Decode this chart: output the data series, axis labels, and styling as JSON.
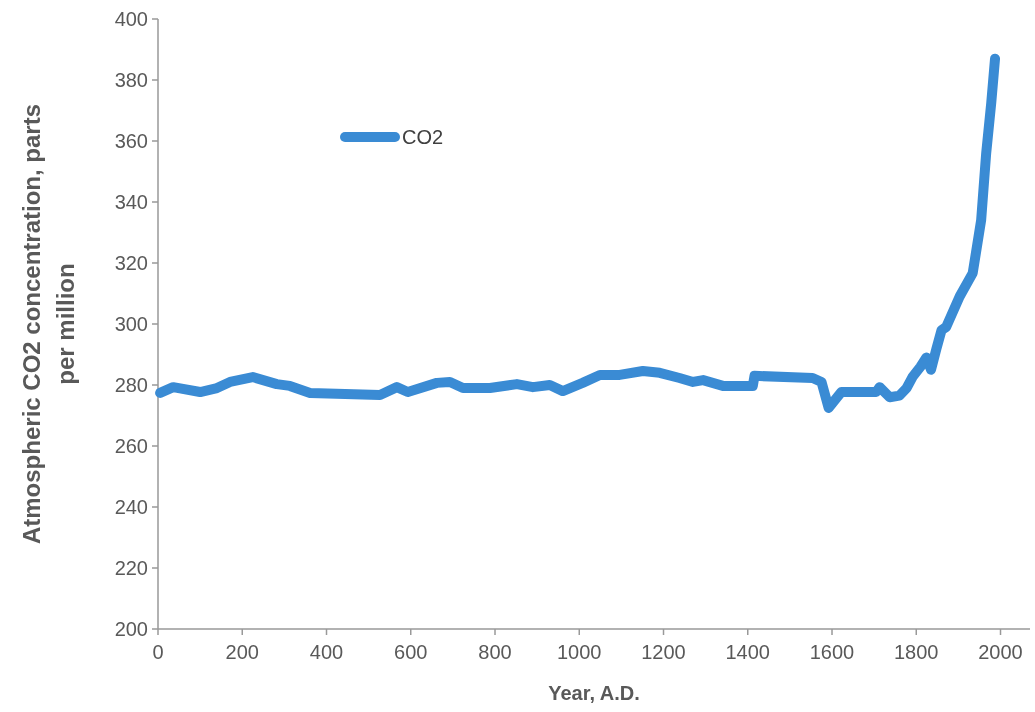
{
  "chart_data": {
    "type": "line",
    "xlabel": "Year, A.D.",
    "ylabel": "Atmospheric CO2 concentration, parts per million",
    "xlim": [
      0,
      2070
    ],
    "xticks": [
      0,
      200,
      400,
      600,
      800,
      1000,
      1200,
      1400,
      1600,
      1800,
      2000
    ],
    "ylim": [
      200,
      400
    ],
    "yticks": [
      200,
      220,
      240,
      260,
      280,
      300,
      320,
      340,
      360,
      380,
      400
    ],
    "grid": false,
    "legend": "top left",
    "line_style": "solid",
    "series": [
      {
        "name": "CO2",
        "color": "#3a8bd4",
        "x": [
          5,
          36,
          100,
          140,
          171,
          225,
          282,
          313,
          361,
          527,
          567,
          593,
          662,
          693,
          724,
          788,
          852,
          890,
          930,
          961,
          1008,
          1049,
          1096,
          1151,
          1191,
          1238,
          1270,
          1294,
          1341,
          1412,
          1416,
          1554,
          1575,
          1592,
          1622,
          1705,
          1713,
          1737,
          1760,
          1777,
          1791,
          1810,
          1824,
          1835,
          1848,
          1860,
          1871,
          1903,
          1934,
          1954,
          1966,
          1978,
          1987
        ],
        "values": [
          277.4,
          279.3,
          277.7,
          279,
          281,
          282.6,
          280.3,
          279.7,
          277.4,
          276.7,
          279.3,
          277.7,
          280.7,
          281,
          279,
          279,
          280.3,
          279.3,
          280,
          278,
          280.7,
          283.3,
          283.3,
          284.6,
          284,
          282.3,
          281,
          281.6,
          279.7,
          279.7,
          283,
          282.3,
          281,
          272.5,
          277.7,
          277.7,
          279.3,
          276,
          276.5,
          279,
          282.6,
          286,
          289,
          285,
          292,
          298,
          299,
          309,
          316.7,
          334,
          356,
          372.5,
          387
        ]
      }
    ]
  }
}
